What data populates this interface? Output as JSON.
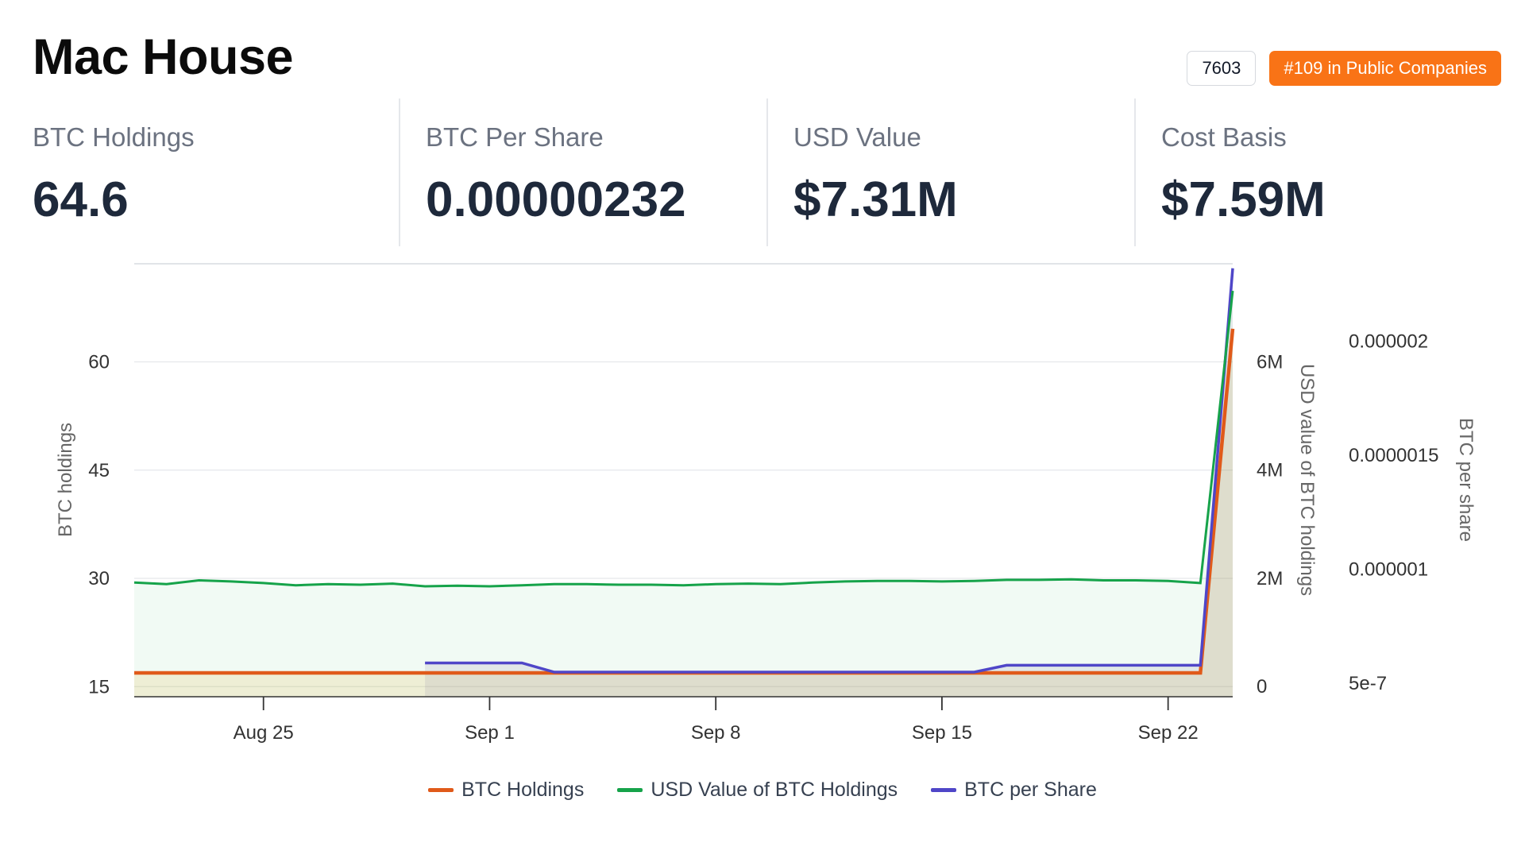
{
  "header": {
    "title": "Mac House",
    "code_badge": "7603",
    "rank_badge": "#109 in Public Companies"
  },
  "stats": [
    {
      "label": "BTC Holdings",
      "value": "64.6"
    },
    {
      "label": "BTC Per Share",
      "value": "0.00000232"
    },
    {
      "label": "USD Value",
      "value": "$7.31M"
    },
    {
      "label": "Cost Basis",
      "value": "$7.59M"
    }
  ],
  "colors": {
    "btc_holdings": "#e05a1a",
    "usd_value": "#16a34a",
    "btc_per_share": "#4f46c8",
    "rank_badge": "#f97316"
  },
  "chart_data": {
    "type": "line",
    "x_ticks": [
      "Aug 25",
      "Sep 1",
      "Sep 8",
      "Sep 15",
      "Sep 22"
    ],
    "x_start_date": "2025-08-21",
    "x_end_date": "2025-09-24",
    "y_left": {
      "label": "BTC holdings",
      "ticks": [
        "15",
        "30",
        "45",
        "60"
      ],
      "range": [
        13.6,
        73.6
      ]
    },
    "y_right1": {
      "label": "USD value of BTC holdings",
      "ticks": [
        "0",
        "2M",
        "4M",
        "6M"
      ],
      "range": [
        -190000,
        7810000
      ]
    },
    "y_right2": {
      "label": "BTC per share",
      "ticks": [
        "5e-7",
        "0.000001",
        "0.0000015",
        "0.000002"
      ],
      "range": [
        4.4e-07,
        2.34e-06
      ]
    },
    "legend": [
      "BTC Holdings",
      "USD Value of BTC Holdings",
      "BTC per Share"
    ],
    "grid": true,
    "legend_position": "bottom",
    "series": [
      {
        "name": "BTC Holdings",
        "axis": "y_left",
        "x": [
          "2025-08-21",
          "2025-09-23",
          "2025-09-24"
        ],
        "values": [
          16.9,
          16.9,
          64.6
        ]
      },
      {
        "name": "USD Value of BTC Holdings",
        "axis": "y_right1",
        "x": [
          "2025-08-21",
          "2025-08-22",
          "2025-08-23",
          "2025-08-24",
          "2025-08-25",
          "2025-08-26",
          "2025-08-27",
          "2025-08-28",
          "2025-08-29",
          "2025-08-30",
          "2025-08-31",
          "2025-09-01",
          "2025-09-02",
          "2025-09-03",
          "2025-09-04",
          "2025-09-05",
          "2025-09-06",
          "2025-09-07",
          "2025-09-08",
          "2025-09-09",
          "2025-09-10",
          "2025-09-11",
          "2025-09-12",
          "2025-09-13",
          "2025-09-14",
          "2025-09-15",
          "2025-09-16",
          "2025-09-17",
          "2025-09-18",
          "2025-09-19",
          "2025-09-20",
          "2025-09-21",
          "2025-09-22",
          "2025-09-23",
          "2025-09-24"
        ],
        "values": [
          1920000,
          1890000,
          1960000,
          1940000,
          1910000,
          1870000,
          1890000,
          1880000,
          1900000,
          1850000,
          1860000,
          1850000,
          1870000,
          1890000,
          1890000,
          1880000,
          1880000,
          1870000,
          1890000,
          1900000,
          1890000,
          1920000,
          1940000,
          1950000,
          1950000,
          1940000,
          1950000,
          1970000,
          1970000,
          1980000,
          1960000,
          1960000,
          1950000,
          1910000,
          7310000
        ]
      },
      {
        "name": "BTC per Share",
        "axis": "y_right2",
        "x": [
          "2025-08-30",
          "2025-09-02",
          "2025-09-03",
          "2025-09-16",
          "2025-09-17",
          "2025-09-23",
          "2025-09-24"
        ],
        "values": [
          5.88e-07,
          5.88e-07,
          5.48e-07,
          5.48e-07,
          5.78e-07,
          5.78e-07,
          2.32e-06
        ]
      }
    ]
  }
}
